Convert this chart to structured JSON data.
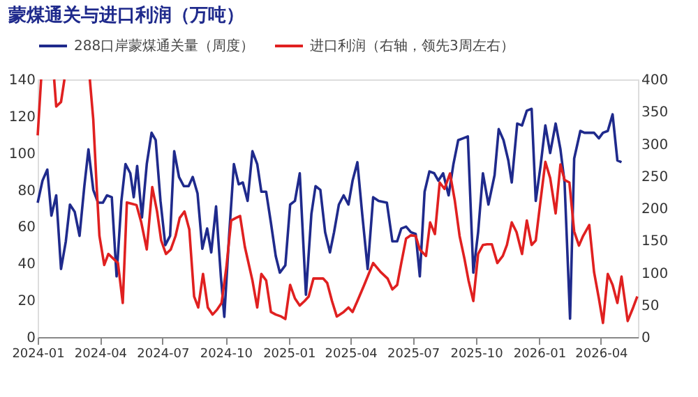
{
  "chart_data": {
    "type": "line",
    "title": "蒙煤通关与进口利润（万吨）",
    "xlim": [
      "2024-01-01",
      "2026-05-25"
    ],
    "xticks": [
      {
        "value": "2024-01-01",
        "label": "2024-01"
      },
      {
        "value": "2024-04-01",
        "label": "2024-04"
      },
      {
        "value": "2024-07-01",
        "label": "2024-07"
      },
      {
        "value": "2024-10-01",
        "label": "2024-10"
      },
      {
        "value": "2025-01-01",
        "label": "2025-01"
      },
      {
        "value": "2025-04-01",
        "label": "2025-04"
      },
      {
        "value": "2025-07-01",
        "label": "2025-07"
      },
      {
        "value": "2025-10-01",
        "label": "2025-10"
      },
      {
        "value": "2026-01-01",
        "label": "2026-01"
      },
      {
        "value": "2026-04-01",
        "label": "2026-04"
      }
    ],
    "ylim": [
      0,
      140
    ],
    "yticks": [
      0,
      20,
      40,
      60,
      80,
      100,
      120,
      140
    ],
    "y2lim": [
      0,
      400
    ],
    "y2ticks": [
      0,
      50,
      100,
      150,
      200,
      250,
      300,
      350,
      400
    ],
    "grid": false,
    "legend": "top",
    "marker": "none",
    "line_style": "solid",
    "series": [
      {
        "name": "288口岸蒙煤通关量（周度）",
        "color": "#1f2a8c",
        "x": [
          "2024-01-01",
          "2024-01-08",
          "2024-01-15",
          "2024-01-21",
          "2024-01-28",
          "2024-02-04",
          "2024-02-11",
          "2024-02-17",
          "2024-02-24",
          "2024-03-02",
          "2024-03-09",
          "2024-03-15",
          "2024-03-22",
          "2024-03-29",
          "2024-04-05",
          "2024-04-11",
          "2024-04-18",
          "2024-04-25",
          "2024-05-02",
          "2024-05-08",
          "2024-05-15",
          "2024-05-20",
          "2024-05-25",
          "2024-06-01",
          "2024-06-08",
          "2024-06-15",
          "2024-06-21",
          "2024-06-28",
          "2024-07-05",
          "2024-07-12",
          "2024-07-18",
          "2024-07-25",
          "2024-08-01",
          "2024-08-08",
          "2024-08-14",
          "2024-08-21",
          "2024-08-28",
          "2024-09-04",
          "2024-09-10",
          "2024-09-17",
          "2024-09-24",
          "2024-09-29",
          "2024-10-06",
          "2024-10-13",
          "2024-10-20",
          "2024-10-26",
          "2024-11-02",
          "2024-11-09",
          "2024-11-16",
          "2024-11-22",
          "2024-11-29",
          "2024-12-06",
          "2024-12-13",
          "2024-12-19",
          "2024-12-27",
          "2025-01-03",
          "2025-01-10",
          "2025-01-17",
          "2025-01-26",
          "2025-02-03",
          "2025-02-09",
          "2025-02-16",
          "2025-02-23",
          "2025-03-02",
          "2025-03-08",
          "2025-03-15",
          "2025-03-22",
          "2025-03-29",
          "2025-04-04",
          "2025-04-11",
          "2025-04-18",
          "2025-04-26",
          "2025-05-04",
          "2025-05-12",
          "2025-05-24",
          "2025-06-01",
          "2025-06-08",
          "2025-06-14",
          "2025-06-21",
          "2025-06-28",
          "2025-07-05",
          "2025-07-11",
          "2025-07-18",
          "2025-07-25",
          "2025-08-01",
          "2025-08-07",
          "2025-08-14",
          "2025-08-22",
          "2025-08-29",
          "2025-09-05",
          "2025-09-12",
          "2025-09-19",
          "2025-09-27",
          "2025-10-04",
          "2025-10-11",
          "2025-10-19",
          "2025-10-28",
          "2025-11-03",
          "2025-11-10",
          "2025-11-17",
          "2025-11-22",
          "2025-11-30",
          "2025-12-07",
          "2025-12-14",
          "2025-12-21",
          "2025-12-27",
          "2026-01-03",
          "2026-01-10",
          "2026-01-17",
          "2026-01-25",
          "2026-02-01",
          "2026-02-07",
          "2026-02-15",
          "2026-02-21",
          "2026-03-02",
          "2026-03-08",
          "2026-03-15",
          "2026-03-22",
          "2026-03-29",
          "2026-04-04",
          "2026-04-11",
          "2026-04-18",
          "2026-04-25",
          "2026-05-01"
        ],
        "values": [
          73,
          85,
          91,
          66,
          77,
          37,
          52,
          72,
          68,
          55,
          82,
          102,
          80,
          73,
          73,
          77,
          76,
          33,
          74,
          94,
          89,
          76,
          93,
          65,
          94,
          111,
          107,
          74,
          50,
          55,
          101,
          87,
          82,
          82,
          87,
          78,
          48,
          59,
          46,
          71,
          33,
          11,
          55,
          94,
          83,
          84,
          74,
          101,
          94,
          79,
          79,
          62,
          44,
          35,
          39,
          72,
          74,
          89,
          23,
          67,
          82,
          80,
          57,
          46,
          57,
          72,
          77,
          72,
          85,
          95,
          67,
          37,
          76,
          74,
          73,
          52,
          52,
          59,
          60,
          57,
          56,
          33,
          79,
          90,
          89,
          85,
          89,
          77,
          94,
          107,
          108,
          109,
          35,
          57,
          89,
          72,
          88,
          113,
          107,
          96,
          84,
          116,
          115,
          123,
          124,
          74,
          93,
          115,
          100,
          116,
          102,
          84,
          10,
          97,
          112,
          111,
          111,
          111,
          108,
          111,
          112,
          121,
          96,
          95
        ]
      },
      {
        "name": "进口利润（右轴，领先3周左右）",
        "color": "#e02020",
        "axis": "y2",
        "x": [
          "2024-01-01",
          "2024-01-06",
          "2024-01-15",
          "2024-01-25",
          "2024-01-28",
          "2024-02-04",
          "2024-02-09",
          "2024-02-25",
          "2024-03-17",
          "2024-03-22",
          "2024-03-27",
          "2024-03-31",
          "2024-04-07",
          "2024-04-13",
          "2024-04-20",
          "2024-04-27",
          "2024-05-04",
          "2024-05-10",
          "2024-05-17",
          "2024-05-24",
          "2024-05-31",
          "2024-06-08",
          "2024-06-16",
          "2024-06-23",
          "2024-06-29",
          "2024-07-06",
          "2024-07-13",
          "2024-07-20",
          "2024-07-26",
          "2024-08-02",
          "2024-08-09",
          "2024-08-16",
          "2024-08-22",
          "2024-08-29",
          "2024-09-05",
          "2024-09-12",
          "2024-09-18",
          "2024-09-25",
          "2024-10-02",
          "2024-10-09",
          "2024-10-16",
          "2024-10-22",
          "2024-10-29",
          "2024-11-09",
          "2024-11-16",
          "2024-11-22",
          "2024-11-29",
          "2024-12-06",
          "2024-12-13",
          "2024-12-21",
          "2024-12-27",
          "2025-01-03",
          "2025-01-10",
          "2025-01-17",
          "2025-01-24",
          "2025-01-30",
          "2025-02-06",
          "2025-02-13",
          "2025-02-20",
          "2025-02-26",
          "2025-03-05",
          "2025-03-12",
          "2025-03-22",
          "2025-03-29",
          "2025-04-04",
          "2025-04-11",
          "2025-04-21",
          "2025-05-04",
          "2025-05-15",
          "2025-05-25",
          "2025-06-01",
          "2025-06-08",
          "2025-06-14",
          "2025-06-21",
          "2025-06-28",
          "2025-07-05",
          "2025-07-11",
          "2025-07-20",
          "2025-07-26",
          "2025-08-02",
          "2025-08-09",
          "2025-08-16",
          "2025-08-24",
          "2025-08-31",
          "2025-09-07",
          "2025-09-14",
          "2025-09-20",
          "2025-09-27",
          "2025-10-04",
          "2025-10-11",
          "2025-10-17",
          "2025-10-24",
          "2025-11-01",
          "2025-11-09",
          "2025-11-15",
          "2025-11-22",
          "2025-11-29",
          "2025-12-07",
          "2025-12-14",
          "2025-12-21",
          "2025-12-27",
          "2026-01-03",
          "2026-01-10",
          "2026-01-17",
          "2026-01-25",
          "2026-02-01",
          "2026-02-07",
          "2026-02-14",
          "2026-02-21",
          "2026-02-28",
          "2026-03-06",
          "2026-03-15",
          "2026-03-22",
          "2026-03-29",
          "2026-04-04",
          "2026-04-11",
          "2026-04-18",
          "2026-04-25",
          "2026-05-01",
          "2026-05-10",
          "2026-05-18",
          "2026-05-24"
        ],
        "values": [
          313,
          400,
          null,
          400,
          358,
          365,
          400,
          null,
          400,
          338,
          233,
          157,
          112,
          129,
          122,
          115,
          53,
          209,
          207,
          205,
          178,
          136,
          233,
          195,
          150,
          129,
          136,
          157,
          185,
          195,
          167,
          63,
          46,
          98,
          46,
          35,
          42,
          53,
          108,
          181,
          185,
          188,
          140,
          88,
          46,
          98,
          88,
          39,
          35,
          32,
          28,
          81,
          60,
          49,
          56,
          63,
          91,
          91,
          91,
          84,
          56,
          32,
          39,
          46,
          39,
          56,
          81,
          115,
          101,
          91,
          74,
          81,
          115,
          153,
          158,
          157,
          136,
          126,
          178,
          160,
          240,
          230,
          254,
          212,
          157,
          122,
          88,
          56,
          129,
          143,
          144,
          144,
          115,
          126,
          143,
          178,
          163,
          129,
          181,
          143,
          150,
          212,
          272,
          247,
          192,
          268,
          244,
          240,
          164,
          142,
          157,
          174,
          101,
          60,
          22,
          98,
          81,
          53,
          94,
          25,
          46,
          63
        ]
      }
    ]
  }
}
